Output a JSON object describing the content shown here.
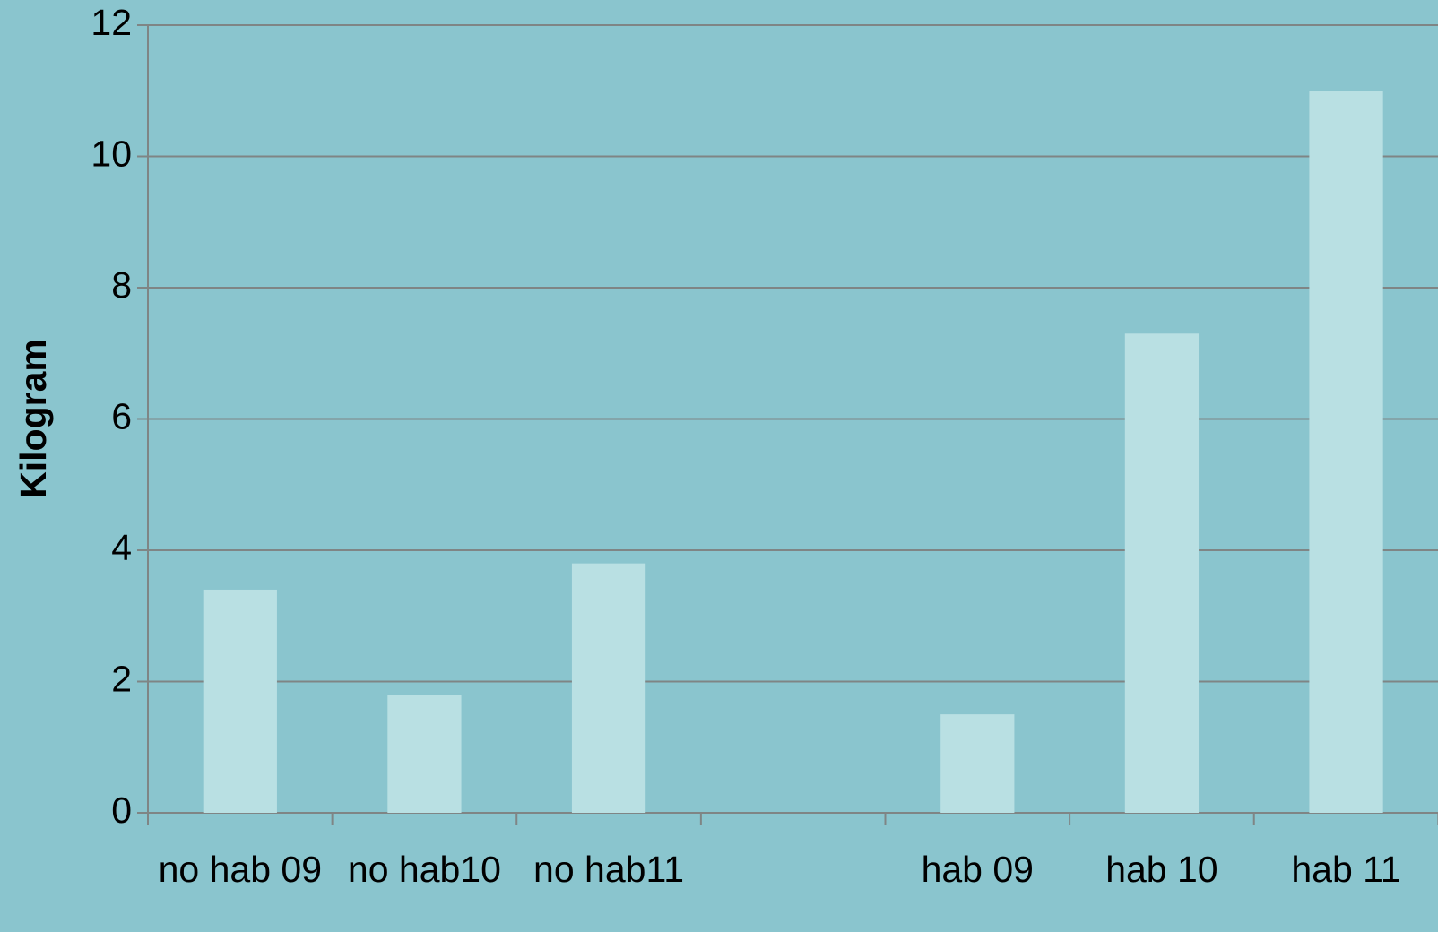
{
  "chart_data": {
    "type": "bar",
    "y_label": "Kilogram",
    "categories": [
      "no hab 09",
      "no hab10",
      "no hab11",
      null,
      "hab 09",
      "hab 10",
      "hab 11"
    ],
    "values": [
      3.4,
      1.8,
      3.8,
      null,
      1.5,
      7.3,
      11
    ],
    "color": "#b9e0e3",
    "ylim": [
      0,
      12
    ],
    "yticks": [
      0,
      2,
      4,
      6,
      8,
      10,
      12
    ],
    "grid": true
  }
}
